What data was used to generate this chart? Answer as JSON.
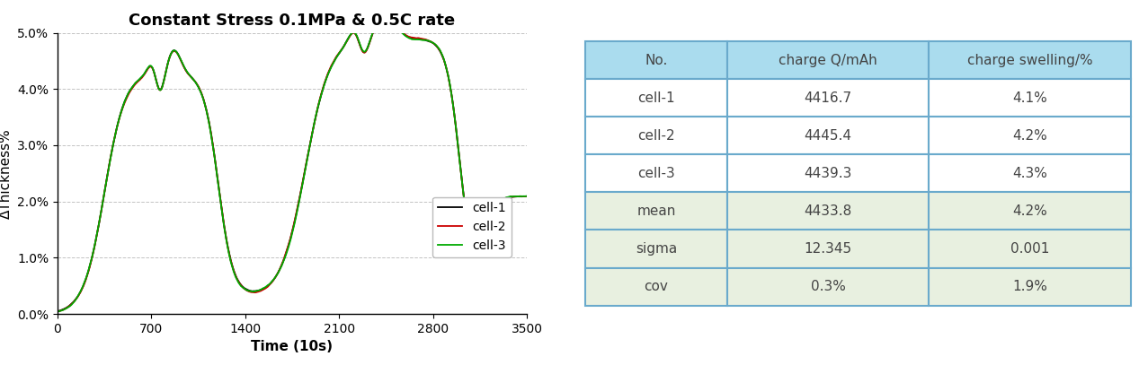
{
  "title": "Constant Stress 0.1MPa & 0.5C rate",
  "xlabel": "Time (10s)",
  "ylabel": "ΔThickness%",
  "xlim": [
    0,
    3500
  ],
  "ylim": [
    0.0,
    0.05
  ],
  "yticks": [
    0.0,
    0.01,
    0.02,
    0.03,
    0.04,
    0.05
  ],
  "ytick_labels": [
    "0.0%",
    "1.0%",
    "2.0%",
    "3.0%",
    "4.0%",
    "5.0%"
  ],
  "xticks": [
    0,
    700,
    1400,
    2100,
    2800,
    3500
  ],
  "line_colors": [
    "#000000",
    "#cc0000",
    "#00aa00"
  ],
  "line_labels": [
    "cell-1",
    "cell-2",
    "cell-3"
  ],
  "table_header": [
    "No.",
    "charge Q/mAh",
    "charge swelling/%"
  ],
  "table_header_bg": "#aadcee",
  "table_data": [
    [
      "cell-1",
      "4416.7",
      "4.1%"
    ],
    [
      "cell-2",
      "4445.4",
      "4.2%"
    ],
    [
      "cell-3",
      "4439.3",
      "4.3%"
    ],
    [
      "mean",
      "4433.8",
      "4.2%"
    ],
    [
      "sigma",
      "12.345",
      "0.001"
    ],
    [
      "cov",
      "0.3%",
      "1.9%"
    ]
  ],
  "table_data_bg_white": "#ffffff",
  "table_data_bg_green": "#e8f0e0",
  "table_border_color": "#6aaacc",
  "table_text_color": "#444444",
  "bg_color": "#ffffff",
  "title_fontsize": 13,
  "axis_fontsize": 11,
  "tick_fontsize": 10,
  "legend_fontsize": 10,
  "table_fontsize": 11
}
